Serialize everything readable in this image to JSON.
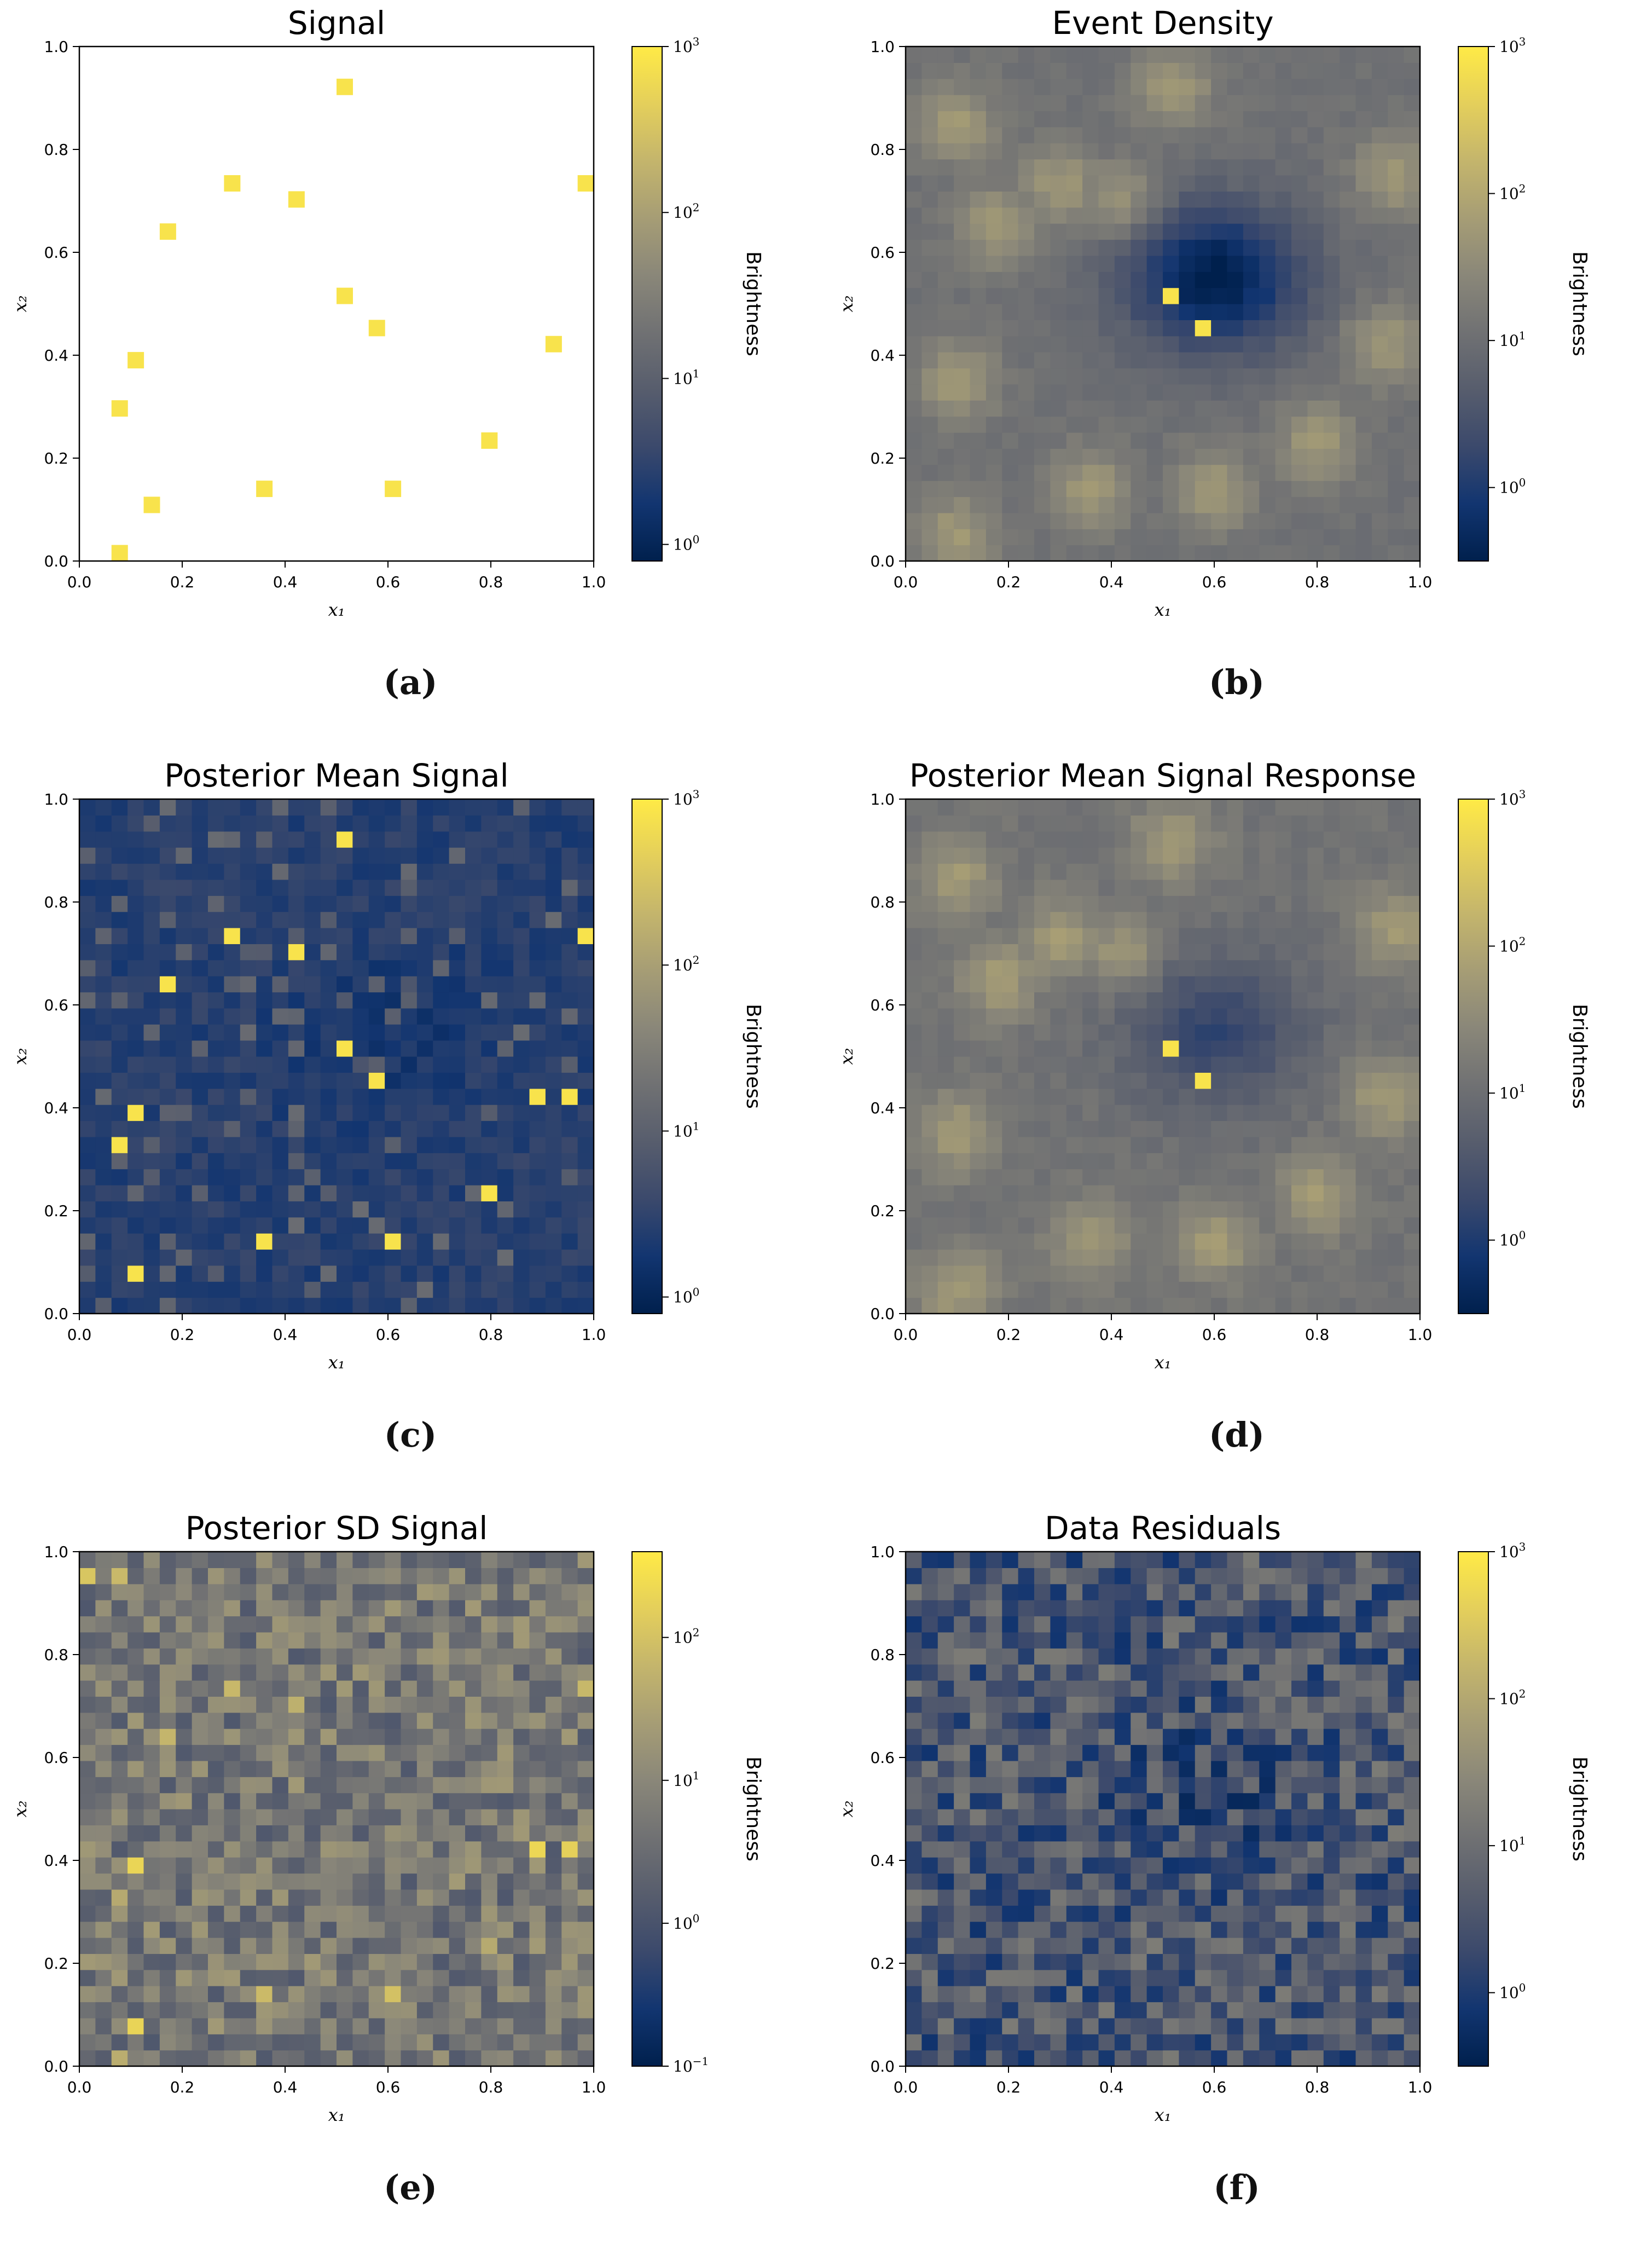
{
  "figure": {
    "background": "#ffffff"
  },
  "colormap": [
    "#00204d",
    "#123570",
    "#3b496c",
    "#575d6d",
    "#707173",
    "#8a8779",
    "#a69d75",
    "#c4b56c",
    "#e4cf5b",
    "#ffea46"
  ],
  "chart_data": [
    {
      "id": "a",
      "type": "heatmap",
      "label": "(a)",
      "title": "Signal",
      "xlabel": "x₁",
      "ylabel": "x₂",
      "xlim": [
        0,
        1
      ],
      "ylim": [
        0,
        1
      ],
      "xticks": [
        "0.0",
        "0.2",
        "0.4",
        "0.6",
        "0.8",
        "1.0"
      ],
      "yticks": [
        "0.0",
        "0.2",
        "0.4",
        "0.6",
        "0.8",
        "1.0"
      ],
      "grid_size": 32,
      "field": "sparse",
      "seed": 11,
      "colorbar": {
        "label": "Brightness",
        "scale": "log",
        "vmin_exp": -0.1,
        "vmax_exp": 3,
        "ticks": [
          {
            "base": "10",
            "exp": "0"
          },
          {
            "base": "10",
            "exp": "1"
          },
          {
            "base": "10",
            "exp": "2"
          },
          {
            "base": "10",
            "exp": "3"
          }
        ]
      },
      "point_sources": [
        {
          "x": 0.08,
          "y": 0.02
        },
        {
          "x": 0.08,
          "y": 0.3
        },
        {
          "x": 0.11,
          "y": 0.39
        },
        {
          "x": 0.14,
          "y": 0.11
        },
        {
          "x": 0.17,
          "y": 0.64
        },
        {
          "x": 0.3,
          "y": 0.73
        },
        {
          "x": 0.36,
          "y": 0.14
        },
        {
          "x": 0.42,
          "y": 0.7
        },
        {
          "x": 0.52,
          "y": 0.92
        },
        {
          "x": 0.52,
          "y": 0.52
        },
        {
          "x": 0.58,
          "y": 0.45
        },
        {
          "x": 0.61,
          "y": 0.14
        },
        {
          "x": 0.8,
          "y": 0.23
        },
        {
          "x": 0.92,
          "y": 0.42
        },
        {
          "x": 0.98,
          "y": 0.73
        }
      ]
    },
    {
      "id": "b",
      "type": "heatmap",
      "label": "(b)",
      "title": "Event Density",
      "xlabel": "x₁",
      "ylabel": "x₂",
      "xlim": [
        0,
        1
      ],
      "ylim": [
        0,
        1
      ],
      "xticks": [
        "0.0",
        "0.2",
        "0.4",
        "0.6",
        "0.8",
        "1.0"
      ],
      "yticks": [
        "0.0",
        "0.2",
        "0.4",
        "0.6",
        "0.8",
        "1.0"
      ],
      "grid_size": 32,
      "field": "blobs_dark",
      "seed": 23,
      "colorbar": {
        "label": "Brightness",
        "scale": "log",
        "vmin_exp": -0.5,
        "vmax_exp": 3,
        "ticks": [
          {
            "base": "10",
            "exp": "0"
          },
          {
            "base": "10",
            "exp": "1"
          },
          {
            "base": "10",
            "exp": "2"
          },
          {
            "base": "10",
            "exp": "3"
          }
        ]
      },
      "blobs": [
        {
          "x": 0.1,
          "y": 0.35
        },
        {
          "x": 0.18,
          "y": 0.65
        },
        {
          "x": 0.3,
          "y": 0.73
        },
        {
          "x": 0.42,
          "y": 0.7
        },
        {
          "x": 0.52,
          "y": 0.92
        },
        {
          "x": 0.36,
          "y": 0.14
        },
        {
          "x": 0.6,
          "y": 0.14
        },
        {
          "x": 0.8,
          "y": 0.23
        },
        {
          "x": 0.93,
          "y": 0.42
        },
        {
          "x": 0.95,
          "y": 0.75
        },
        {
          "x": 0.1,
          "y": 0.05
        },
        {
          "x": 0.1,
          "y": 0.85
        }
      ],
      "peaks": [
        {
          "x": 0.52,
          "y": 0.52
        },
        {
          "x": 0.58,
          "y": 0.45
        }
      ]
    },
    {
      "id": "c",
      "type": "heatmap",
      "label": "(c)",
      "title": "Posterior Mean Signal",
      "xlabel": "x₁",
      "ylabel": "x₂",
      "xlim": [
        0,
        1
      ],
      "ylim": [
        0,
        1
      ],
      "xticks": [
        "0.0",
        "0.2",
        "0.4",
        "0.6",
        "0.8",
        "1.0"
      ],
      "yticks": [
        "0.0",
        "0.2",
        "0.4",
        "0.6",
        "0.8",
        "1.0"
      ],
      "grid_size": 32,
      "field": "sparse_blue",
      "seed": 37,
      "colorbar": {
        "label": "Brightness",
        "scale": "log",
        "vmin_exp": -0.1,
        "vmax_exp": 3,
        "ticks": [
          {
            "base": "10",
            "exp": "0"
          },
          {
            "base": "10",
            "exp": "1"
          },
          {
            "base": "10",
            "exp": "2"
          },
          {
            "base": "10",
            "exp": "3"
          }
        ]
      },
      "point_sources": [
        {
          "x": 0.11,
          "y": 0.08
        },
        {
          "x": 0.08,
          "y": 0.33
        },
        {
          "x": 0.11,
          "y": 0.39
        },
        {
          "x": 0.17,
          "y": 0.64
        },
        {
          "x": 0.3,
          "y": 0.73
        },
        {
          "x": 0.36,
          "y": 0.14
        },
        {
          "x": 0.42,
          "y": 0.7
        },
        {
          "x": 0.52,
          "y": 0.92
        },
        {
          "x": 0.52,
          "y": 0.52
        },
        {
          "x": 0.58,
          "y": 0.45
        },
        {
          "x": 0.61,
          "y": 0.14
        },
        {
          "x": 0.8,
          "y": 0.23
        },
        {
          "x": 0.89,
          "y": 0.42
        },
        {
          "x": 0.95,
          "y": 0.42
        },
        {
          "x": 0.98,
          "y": 0.73
        }
      ]
    },
    {
      "id": "d",
      "type": "heatmap",
      "label": "(d)",
      "title": "Posterior Mean Signal Response",
      "xlabel": "x₁",
      "ylabel": "x₂",
      "xlim": [
        0,
        1
      ],
      "ylim": [
        0,
        1
      ],
      "xticks": [
        "0.0",
        "0.2",
        "0.4",
        "0.6",
        "0.8",
        "1.0"
      ],
      "yticks": [
        "0.0",
        "0.2",
        "0.4",
        "0.6",
        "0.8",
        "1.0"
      ],
      "grid_size": 32,
      "field": "blobs_blue",
      "seed": 41,
      "colorbar": {
        "label": "Brightness",
        "scale": "log",
        "vmin_exp": -0.5,
        "vmax_exp": 3,
        "ticks": [
          {
            "base": "10",
            "exp": "0"
          },
          {
            "base": "10",
            "exp": "1"
          },
          {
            "base": "10",
            "exp": "2"
          },
          {
            "base": "10",
            "exp": "3"
          }
        ]
      },
      "blobs": [
        {
          "x": 0.1,
          "y": 0.35
        },
        {
          "x": 0.18,
          "y": 0.65
        },
        {
          "x": 0.3,
          "y": 0.73
        },
        {
          "x": 0.42,
          "y": 0.7
        },
        {
          "x": 0.52,
          "y": 0.92
        },
        {
          "x": 0.36,
          "y": 0.14
        },
        {
          "x": 0.6,
          "y": 0.14
        },
        {
          "x": 0.8,
          "y": 0.23
        },
        {
          "x": 0.93,
          "y": 0.42
        },
        {
          "x": 0.95,
          "y": 0.75
        },
        {
          "x": 0.1,
          "y": 0.05
        },
        {
          "x": 0.1,
          "y": 0.85
        }
      ],
      "peaks": [
        {
          "x": 0.52,
          "y": 0.52
        },
        {
          "x": 0.58,
          "y": 0.45
        }
      ]
    },
    {
      "id": "e",
      "type": "heatmap",
      "label": "(e)",
      "title": "Posterior SD Signal",
      "xlabel": "x₁",
      "ylabel": "x₂",
      "xlim": [
        0,
        1
      ],
      "ylim": [
        0,
        1
      ],
      "xticks": [
        "0.0",
        "0.2",
        "0.4",
        "0.6",
        "0.8",
        "1.0"
      ],
      "yticks": [
        "0.0",
        "0.2",
        "0.4",
        "0.6",
        "0.8",
        "1.0"
      ],
      "grid_size": 32,
      "field": "noise_gray",
      "seed": 53,
      "colorbar": {
        "label": "Brightness",
        "scale": "log",
        "vmin_exp": -1,
        "vmax_exp": 2.6,
        "ticks": [
          {
            "base": "10",
            "exp": "−1"
          },
          {
            "base": "10",
            "exp": "0"
          },
          {
            "base": "10",
            "exp": "1"
          },
          {
            "base": "10",
            "exp": "2"
          }
        ]
      },
      "point_sources": [
        {
          "x": 0.11,
          "y": 0.08
        },
        {
          "x": 0.08,
          "y": 0.33
        },
        {
          "x": 0.11,
          "y": 0.39
        },
        {
          "x": 0.17,
          "y": 0.64
        },
        {
          "x": 0.3,
          "y": 0.73
        },
        {
          "x": 0.36,
          "y": 0.14
        },
        {
          "x": 0.42,
          "y": 0.7
        },
        {
          "x": 0.02,
          "y": 0.95
        },
        {
          "x": 0.08,
          "y": 0.95
        },
        {
          "x": 0.61,
          "y": 0.14
        },
        {
          "x": 0.8,
          "y": 0.23
        },
        {
          "x": 0.89,
          "y": 0.42
        },
        {
          "x": 0.95,
          "y": 0.42
        },
        {
          "x": 0.98,
          "y": 0.73
        },
        {
          "x": 0.08,
          "y": 0.02
        }
      ]
    },
    {
      "id": "f",
      "type": "heatmap",
      "label": "(f)",
      "title": "Data Residuals",
      "xlabel": "x₁",
      "ylabel": "x₂",
      "xlim": [
        0,
        1
      ],
      "ylim": [
        0,
        1
      ],
      "xticks": [
        "0.0",
        "0.2",
        "0.4",
        "0.6",
        "0.8",
        "1.0"
      ],
      "yticks": [
        "0.0",
        "0.2",
        "0.4",
        "0.6",
        "0.8",
        "1.0"
      ],
      "grid_size": 32,
      "field": "noise_blue",
      "seed": 67,
      "colorbar": {
        "label": "Brightness",
        "scale": "log",
        "vmin_exp": -0.5,
        "vmax_exp": 3,
        "ticks": [
          {
            "base": "10",
            "exp": "0"
          },
          {
            "base": "10",
            "exp": "1"
          },
          {
            "base": "10",
            "exp": "2"
          },
          {
            "base": "10",
            "exp": "3"
          }
        ]
      }
    }
  ]
}
